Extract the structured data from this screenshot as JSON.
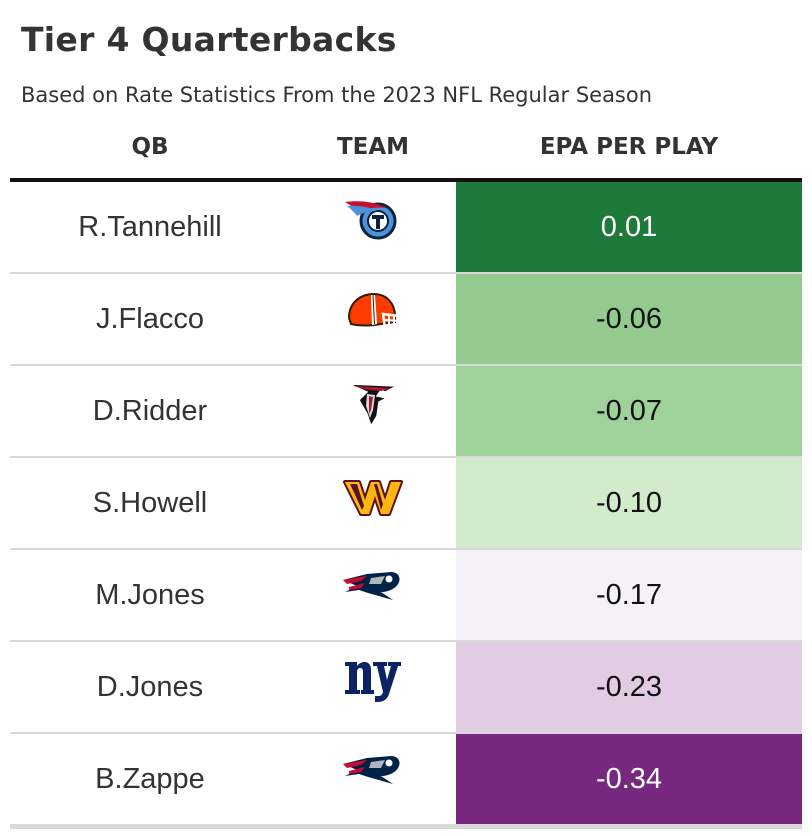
{
  "title": "Tier 4 Quarterbacks",
  "subtitle": "Based on Rate Statistics From the 2023 NFL Regular Season",
  "columns": {
    "qb": "QB",
    "team": "TEAM",
    "epa": "EPA PER PLAY"
  },
  "chart_data": {
    "type": "table",
    "title": "Tier 4 Quarterbacks",
    "subtitle": "Based on Rate Statistics From the 2023 NFL Regular Season",
    "rows": [
      {
        "qb": "R.Tannehill",
        "team_logo": "titans-logo-icon",
        "epa": "0.01",
        "fill": "#1e7a3a",
        "text_color": "#ffffff"
      },
      {
        "qb": "J.Flacco",
        "team_logo": "browns-logo-icon",
        "epa": "-0.06",
        "fill": "#93ca8e",
        "text_color": "#111111"
      },
      {
        "qb": "D.Ridder",
        "team_logo": "falcons-logo-icon",
        "epa": "-0.07",
        "fill": "#9fd19a",
        "text_color": "#111111"
      },
      {
        "qb": "S.Howell",
        "team_logo": "commanders-logo-icon",
        "epa": "-0.10",
        "fill": "#d2ebcc",
        "text_color": "#111111"
      },
      {
        "qb": "M.Jones",
        "team_logo": "patriots-logo-icon",
        "epa": "-0.17",
        "fill": "#f4f2f6",
        "text_color": "#111111"
      },
      {
        "qb": "D.Jones",
        "team_logo": "giants-logo-icon",
        "epa": "-0.23",
        "fill": "#e2cce3",
        "text_color": "#111111"
      },
      {
        "qb": "B.Zappe",
        "team_logo": "patriots-logo-icon",
        "epa": "-0.34",
        "fill": "#76287f",
        "text_color": "#ffffff"
      }
    ]
  }
}
